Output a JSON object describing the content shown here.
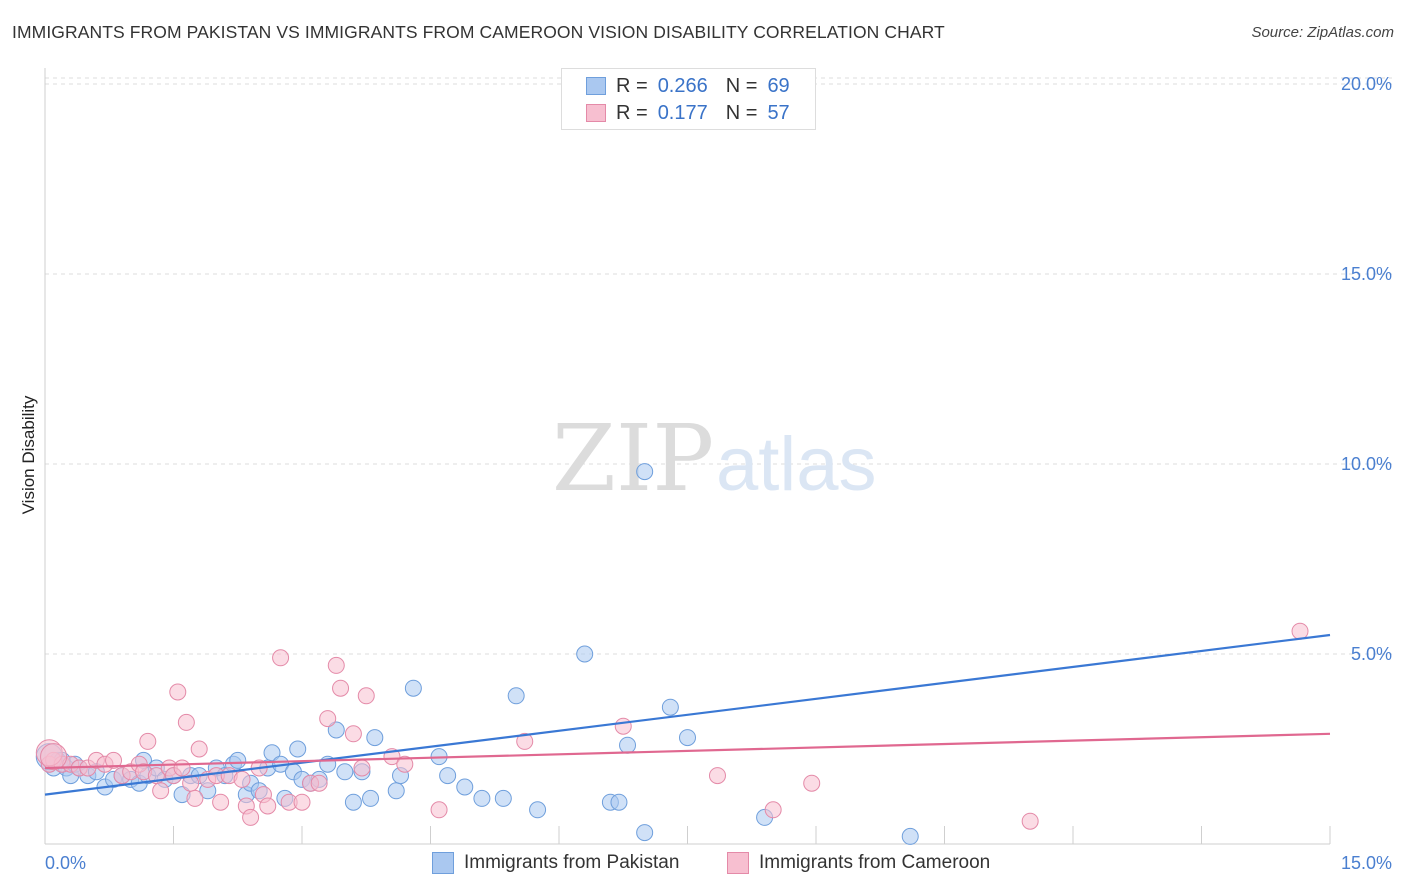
{
  "title": "IMMIGRANTS FROM PAKISTAN VS IMMIGRANTS FROM CAMEROON VISION DISABILITY CORRELATION CHART",
  "source": "Source: ZipAtlas.com",
  "watermark": {
    "zip": "ZIP",
    "atlas": "atlas"
  },
  "legend": {
    "r_label": "R =",
    "n_label": "N =",
    "items": [
      {
        "r": "0.266",
        "n": "69",
        "fill": "#aac8f0",
        "stroke": "#6f9fdc"
      },
      {
        "r": "0.177",
        "n": "57",
        "fill": "#f7bfd0",
        "stroke": "#e48aa8"
      }
    ]
  },
  "chart_data": {
    "type": "scatter",
    "title": "IMMIGRANTS FROM PAKISTAN VS IMMIGRANTS FROM CAMEROON VISION DISABILITY CORRELATION CHART",
    "xlabel": "",
    "ylabel": "Vision Disability",
    "xlim": [
      0,
      15
    ],
    "ylim": [
      0,
      21
    ],
    "x_tick_labels": [
      "0.0%",
      "15.0%"
    ],
    "y_ticks": [
      5,
      10,
      15,
      20
    ],
    "y_tick_labels": [
      "5.0%",
      "10.0%",
      "15.0%",
      "20.0%"
    ],
    "grid": true,
    "legend_position": "top-center",
    "series": [
      {
        "name": "Immigrants from Pakistan",
        "color": "#3a78d4",
        "fill": "#aac8f0",
        "stroke": "#6f9fdc",
        "trend": {
          "x0": 0,
          "y0": 1.3,
          "x1": 15,
          "y1": 5.5
        },
        "points": [
          [
            0.05,
            2.1
          ],
          [
            0.1,
            2.0
          ],
          [
            0.15,
            2.2
          ],
          [
            0.2,
            2.1
          ],
          [
            0.25,
            2.0
          ],
          [
            0.3,
            1.8
          ],
          [
            0.35,
            2.1
          ],
          [
            0.4,
            2.0
          ],
          [
            0.5,
            1.8
          ],
          [
            0.6,
            1.9
          ],
          [
            0.7,
            1.5
          ],
          [
            0.8,
            1.7
          ],
          [
            0.9,
            1.8
          ],
          [
            1.0,
            1.7
          ],
          [
            1.1,
            1.6
          ],
          [
            1.15,
            2.2
          ],
          [
            1.2,
            1.8
          ],
          [
            1.3,
            2.0
          ],
          [
            1.4,
            1.7
          ],
          [
            1.5,
            1.8
          ],
          [
            1.6,
            1.3
          ],
          [
            1.7,
            1.8
          ],
          [
            1.8,
            1.8
          ],
          [
            1.9,
            1.4
          ],
          [
            2.0,
            2.0
          ],
          [
            2.1,
            1.8
          ],
          [
            2.2,
            2.1
          ],
          [
            2.25,
            2.2
          ],
          [
            2.35,
            1.3
          ],
          [
            2.4,
            1.6
          ],
          [
            2.5,
            1.4
          ],
          [
            2.6,
            2.0
          ],
          [
            2.65,
            2.4
          ],
          [
            2.75,
            2.1
          ],
          [
            2.8,
            1.2
          ],
          [
            2.9,
            1.9
          ],
          [
            2.95,
            2.5
          ],
          [
            3.0,
            1.7
          ],
          [
            3.1,
            1.6
          ],
          [
            3.2,
            1.7
          ],
          [
            3.3,
            2.1
          ],
          [
            3.4,
            3.0
          ],
          [
            3.5,
            1.9
          ],
          [
            3.6,
            1.1
          ],
          [
            3.7,
            1.9
          ],
          [
            3.8,
            1.2
          ],
          [
            3.85,
            2.8
          ],
          [
            4.1,
            1.4
          ],
          [
            4.15,
            1.8
          ],
          [
            4.3,
            4.1
          ],
          [
            4.6,
            2.3
          ],
          [
            4.7,
            1.8
          ],
          [
            4.9,
            1.5
          ],
          [
            5.1,
            1.2
          ],
          [
            5.35,
            1.2
          ],
          [
            5.5,
            3.9
          ],
          [
            5.75,
            0.9
          ],
          [
            6.3,
            5.0
          ],
          [
            6.6,
            1.1
          ],
          [
            6.7,
            1.1
          ],
          [
            6.8,
            2.6
          ],
          [
            7.0,
            0.3
          ],
          [
            7.0,
            9.8
          ],
          [
            7.3,
            3.6
          ],
          [
            7.5,
            2.8
          ],
          [
            8.4,
            0.7
          ],
          [
            10.1,
            0.2
          ],
          [
            0.05,
            2.3
          ],
          [
            0.2,
            2.2
          ]
        ]
      },
      {
        "name": "Immigrants from Cameroon",
        "color": "#e06890",
        "fill": "#f7bfd0",
        "stroke": "#e48aa8",
        "trend": {
          "x0": 0,
          "y0": 2.0,
          "x1": 15,
          "y1": 2.9
        },
        "points": [
          [
            0.05,
            2.1
          ],
          [
            0.1,
            2.2
          ],
          [
            0.2,
            2.1
          ],
          [
            0.3,
            2.1
          ],
          [
            0.4,
            2.0
          ],
          [
            0.5,
            2.0
          ],
          [
            0.6,
            2.2
          ],
          [
            0.7,
            2.1
          ],
          [
            0.8,
            2.2
          ],
          [
            0.9,
            1.8
          ],
          [
            1.0,
            1.9
          ],
          [
            1.1,
            2.1
          ],
          [
            1.15,
            1.9
          ],
          [
            1.2,
            2.7
          ],
          [
            1.3,
            1.8
          ],
          [
            1.35,
            1.4
          ],
          [
            1.45,
            2.0
          ],
          [
            1.5,
            1.8
          ],
          [
            1.55,
            4.0
          ],
          [
            1.6,
            2.0
          ],
          [
            1.65,
            3.2
          ],
          [
            1.7,
            1.6
          ],
          [
            1.75,
            1.2
          ],
          [
            1.8,
            2.5
          ],
          [
            1.9,
            1.7
          ],
          [
            2.0,
            1.8
          ],
          [
            2.05,
            1.1
          ],
          [
            2.15,
            1.8
          ],
          [
            2.3,
            1.7
          ],
          [
            2.35,
            1.0
          ],
          [
            2.4,
            0.7
          ],
          [
            2.5,
            2.0
          ],
          [
            2.55,
            1.3
          ],
          [
            2.6,
            1.0
          ],
          [
            2.75,
            4.9
          ],
          [
            2.85,
            1.1
          ],
          [
            3.0,
            1.1
          ],
          [
            3.1,
            1.6
          ],
          [
            3.2,
            1.6
          ],
          [
            3.3,
            3.3
          ],
          [
            3.4,
            4.7
          ],
          [
            3.45,
            4.1
          ],
          [
            3.6,
            2.9
          ],
          [
            3.7,
            2.0
          ],
          [
            3.75,
            3.9
          ],
          [
            4.05,
            2.3
          ],
          [
            4.2,
            2.1
          ],
          [
            4.6,
            0.9
          ],
          [
            5.6,
            2.7
          ],
          [
            6.75,
            3.1
          ],
          [
            7.85,
            1.8
          ],
          [
            8.5,
            0.9
          ],
          [
            8.95,
            1.6
          ],
          [
            11.5,
            0.6
          ],
          [
            14.65,
            5.6
          ],
          [
            0.05,
            2.4
          ],
          [
            0.1,
            2.3
          ]
        ]
      }
    ]
  }
}
